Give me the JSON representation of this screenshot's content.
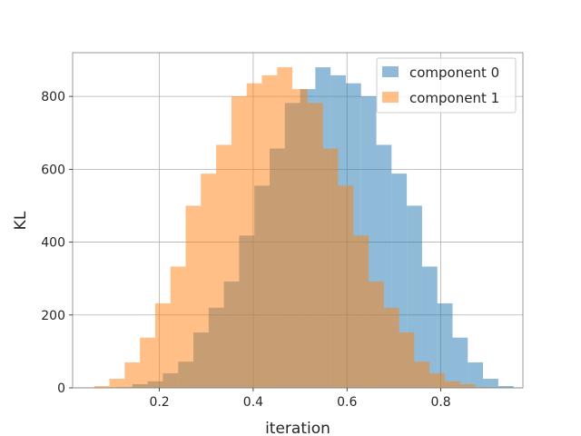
{
  "chart_data": {
    "type": "bar",
    "title": "",
    "xlabel": "iteration",
    "ylabel": "KL",
    "xlim": [
      0.015,
      0.975
    ],
    "ylim": [
      0,
      920
    ],
    "xticks": [
      0.2,
      0.4,
      0.6,
      0.8
    ],
    "yticks": [
      0,
      200,
      400,
      600,
      800
    ],
    "grid": true,
    "legend_position": "upper right",
    "bin_width": 0.0325,
    "series": [
      {
        "name": "component 0",
        "color": "#1f77b4",
        "alpha": 0.5,
        "bin_start": 0.0775,
        "values": [
          0,
          2,
          10,
          18,
          40,
          72,
          152,
          220,
          292,
          418,
          555,
          657,
          782,
          820,
          880,
          858,
          836,
          800,
          667,
          588,
          500,
          333,
          232,
          138,
          70,
          25,
          5
        ]
      },
      {
        "name": "component 1",
        "color": "#ff7f0e",
        "alpha": 0.5,
        "bin_start": 0.061,
        "values": [
          5,
          25,
          70,
          138,
          232,
          333,
          500,
          588,
          667,
          800,
          836,
          858,
          880,
          820,
          782,
          657,
          555,
          418,
          292,
          220,
          152,
          72,
          40,
          18,
          10,
          2
        ]
      }
    ]
  }
}
